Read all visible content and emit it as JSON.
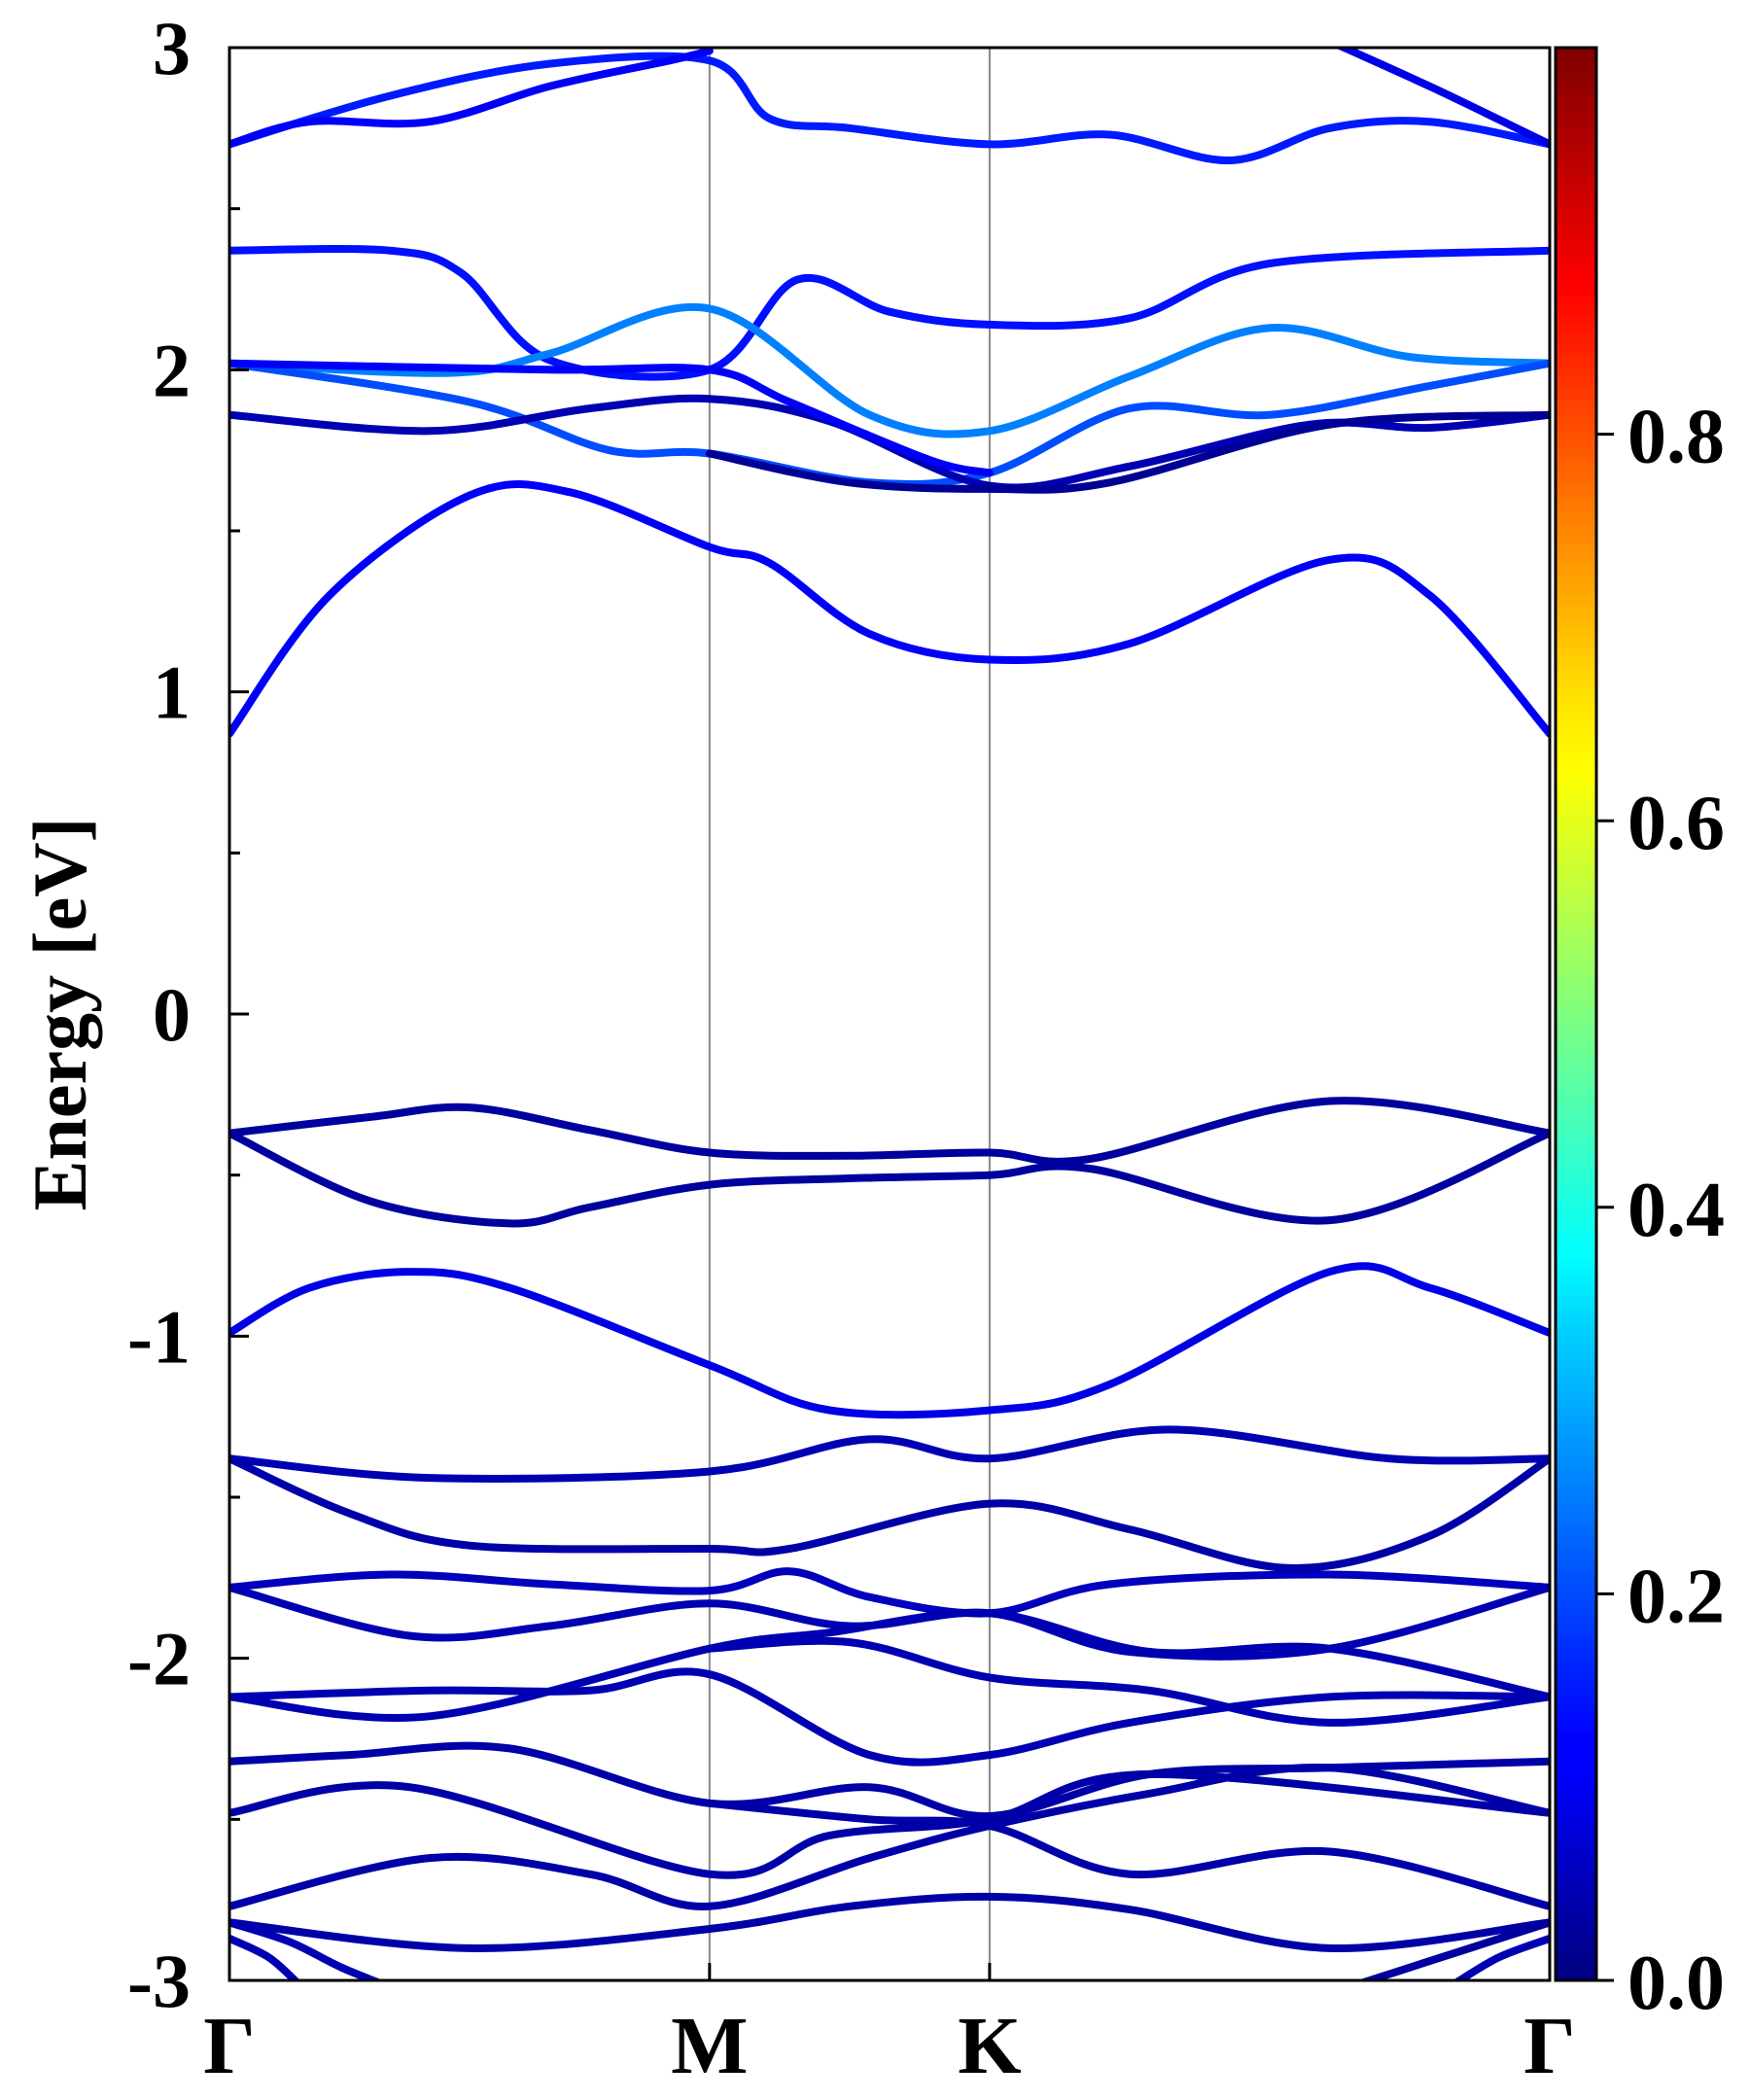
{
  "chart_data": {
    "type": "line",
    "title": "",
    "xlabel": "",
    "ylabel": "Energy [eV]",
    "ylim": [
      -3,
      3
    ],
    "xlim": [
      0,
      3.3
    ],
    "grid": false,
    "legend": "none",
    "high_symmetry_points": [
      {
        "label": "Γ",
        "x": 0
      },
      {
        "label": "M",
        "x": 1.2
      },
      {
        "label": "K",
        "x": 1.9
      },
      {
        "label": "Γ",
        "x": 3.3
      }
    ],
    "y_ticks": [
      {
        "value": 3,
        "label": "3"
      },
      {
        "value": 2,
        "label": "2"
      },
      {
        "value": 1,
        "label": "1"
      },
      {
        "value": 0,
        "label": "0"
      },
      {
        "value": -1,
        "label": "-1"
      },
      {
        "value": -2,
        "label": "-2"
      },
      {
        "value": -3,
        "label": "-3"
      }
    ],
    "colorbar": {
      "colormap": "jet",
      "range": [
        0,
        1
      ],
      "ticks": [
        {
          "value": 0.0,
          "label": "0.0"
        },
        {
          "value": 0.2,
          "label": "0.2"
        },
        {
          "value": 0.4,
          "label": "0.4"
        },
        {
          "value": 0.6,
          "label": "0.6"
        },
        {
          "value": 0.8,
          "label": "0.8"
        }
      ]
    },
    "bands": [
      {
        "weight": 0.15,
        "x": [
          0,
          0.4,
          0.8,
          1.2,
          1.35,
          1.55,
          1.9,
          2.2,
          2.5,
          2.75,
          3.0,
          3.3
        ],
        "y": [
          2.7,
          2.85,
          2.95,
          2.96,
          2.78,
          2.75,
          2.7,
          2.73,
          2.65,
          2.75,
          2.77,
          2.7
        ]
      },
      {
        "weight": 0.12,
        "x": [
          0,
          0.2,
          0.5,
          0.8,
          1.1,
          1.2
        ],
        "y": [
          2.7,
          2.77,
          2.77,
          2.88,
          2.96,
          2.99
        ]
      },
      {
        "weight": 0.1,
        "x": [
          2.75,
          3.0,
          3.3
        ],
        "y": [
          3.02,
          2.88,
          2.7
        ]
      },
      {
        "weight": 0.14,
        "x": [
          0,
          0.4,
          0.58,
          0.8,
          1.2,
          1.42,
          1.65,
          1.9,
          2.25,
          2.6,
          3.3
        ],
        "y": [
          2.37,
          2.37,
          2.3,
          2.03,
          2.0,
          2.28,
          2.18,
          2.14,
          2.16,
          2.33,
          2.37
        ]
      },
      {
        "weight": 0.25,
        "x": [
          0,
          0.55,
          0.8,
          1.2,
          1.6,
          1.9,
          2.25,
          2.6,
          2.95,
          3.3
        ],
        "y": [
          2.02,
          1.99,
          2.05,
          2.19,
          1.86,
          1.81,
          1.98,
          2.13,
          2.04,
          2.02
        ]
      },
      {
        "weight": 0.2,
        "x": [
          0,
          0.6,
          0.95,
          1.2,
          1.6,
          1.9,
          2.25,
          2.6,
          3.0,
          3.3
        ],
        "y": [
          2.02,
          1.9,
          1.75,
          1.74,
          1.65,
          1.68,
          1.88,
          1.86,
          1.95,
          2.02
        ]
      },
      {
        "weight": 0.05,
        "x": [
          0,
          0.5,
          0.9,
          1.2,
          1.5,
          1.9,
          2.25,
          2.7,
          3.0,
          3.3
        ],
        "y": [
          1.86,
          1.81,
          1.88,
          1.91,
          1.84,
          1.64,
          1.7,
          1.83,
          1.82,
          1.86
        ]
      },
      {
        "weight": 0.12,
        "x": [
          0,
          0.8,
          1.2,
          1.4,
          1.75,
          1.9
        ],
        "y": [
          2.02,
          2.0,
          2.0,
          1.9,
          1.72,
          1.68
        ]
      },
      {
        "weight": 0.02,
        "x": [
          1.2,
          1.55,
          1.9,
          2.2,
          2.75,
          3.3
        ],
        "y": [
          1.74,
          1.65,
          1.63,
          1.65,
          1.83,
          1.86
        ]
      },
      {
        "weight": 0.12,
        "x": [
          0,
          0.25,
          0.6,
          0.85,
          1.2,
          1.35,
          1.6,
          1.9,
          2.25,
          2.75,
          3.0,
          3.3
        ],
        "y": [
          0.87,
          1.3,
          1.61,
          1.62,
          1.45,
          1.4,
          1.18,
          1.1,
          1.15,
          1.41,
          1.3,
          0.87
        ]
      },
      {
        "weight": 0.03,
        "x": [
          0,
          0.35,
          0.6,
          0.9,
          1.2,
          1.55,
          1.9,
          2.15,
          2.75,
          3.3
        ],
        "y": [
          -0.37,
          -0.32,
          -0.29,
          -0.36,
          -0.43,
          -0.44,
          -0.43,
          -0.45,
          -0.27,
          -0.37
        ]
      },
      {
        "weight": 0.03,
        "x": [
          0,
          0.35,
          0.7,
          0.9,
          1.2,
          1.55,
          1.9,
          2.15,
          2.75,
          3.3
        ],
        "y": [
          -0.37,
          -0.58,
          -0.65,
          -0.6,
          -0.53,
          -0.51,
          -0.5,
          -0.48,
          -0.64,
          -0.37
        ]
      },
      {
        "weight": 0.1,
        "x": [
          0,
          0.2,
          0.45,
          0.7,
          1.2,
          1.5,
          1.9,
          2.2,
          2.75,
          3.0,
          3.3
        ],
        "y": [
          -0.99,
          -0.85,
          -0.8,
          -0.85,
          -1.09,
          -1.23,
          -1.23,
          -1.15,
          -0.8,
          -0.85,
          -0.99
        ]
      },
      {
        "weight": 0.05,
        "x": [
          0,
          0.5,
          1.2,
          1.6,
          1.9,
          2.35,
          2.9,
          3.3
        ],
        "y": [
          -1.38,
          -1.44,
          -1.42,
          -1.32,
          -1.38,
          -1.29,
          -1.38,
          -1.38
        ]
      },
      {
        "weight": 0.04,
        "x": [
          0,
          0.3,
          0.6,
          1.2,
          1.4,
          1.9,
          2.25,
          2.65,
          3.0,
          3.3
        ],
        "y": [
          -1.38,
          -1.55,
          -1.65,
          -1.66,
          -1.66,
          -1.52,
          -1.6,
          -1.72,
          -1.62,
          -1.38
        ]
      },
      {
        "weight": 0.06,
        "x": [
          0,
          0.4,
          0.8,
          1.2,
          1.4,
          1.6,
          1.9,
          2.2,
          2.75,
          3.3
        ],
        "y": [
          -1.78,
          -1.74,
          -1.77,
          -1.79,
          -1.73,
          -1.81,
          -1.86,
          -1.77,
          -1.74,
          -1.78
        ]
      },
      {
        "weight": 0.05,
        "x": [
          0,
          0.45,
          0.8,
          1.2,
          1.55,
          1.9,
          2.25,
          2.75,
          3.3
        ],
        "y": [
          -1.78,
          -1.93,
          -1.9,
          -1.83,
          -1.9,
          -1.86,
          -1.98,
          -1.97,
          -1.78
        ]
      },
      {
        "weight": 0.05,
        "x": [
          0,
          0.5,
          1.2,
          1.5,
          1.9,
          2.3,
          2.75,
          3.3
        ],
        "y": [
          -2.12,
          -2.18,
          -1.97,
          -1.92,
          -1.86,
          -1.98,
          -1.97,
          -2.12
        ]
      },
      {
        "weight": 0.05,
        "x": [
          0,
          0.5,
          0.9,
          1.2,
          1.6,
          1.9,
          2.25,
          2.75,
          3.3
        ],
        "y": [
          -2.12,
          -2.1,
          -2.1,
          -2.05,
          -2.3,
          -2.3,
          -2.2,
          -2.12,
          -2.12
        ]
      },
      {
        "weight": 0.05,
        "x": [
          1.2,
          1.55,
          1.9,
          2.3,
          2.75,
          3.3
        ],
        "y": [
          -1.97,
          -1.95,
          -2.06,
          -2.1,
          -2.2,
          -2.12
        ]
      },
      {
        "weight": 0.04,
        "x": [
          0,
          0.3,
          0.7,
          1.2,
          1.6,
          1.9,
          2.3,
          2.75,
          3.3
        ],
        "y": [
          -2.32,
          -2.3,
          -2.28,
          -2.45,
          -2.4,
          -2.49,
          -2.36,
          -2.34,
          -2.32
        ]
      },
      {
        "weight": 0.04,
        "x": [
          0,
          0.45,
          1.2,
          1.5,
          1.9,
          2.3,
          3.3
        ],
        "y": [
          -2.48,
          -2.4,
          -2.67,
          -2.55,
          -2.5,
          -2.36,
          -2.48
        ]
      },
      {
        "weight": 0.04,
        "x": [
          0,
          0.5,
          0.9,
          1.2,
          1.6,
          1.9,
          2.3,
          2.75,
          3.3
        ],
        "y": [
          -2.77,
          -2.62,
          -2.67,
          -2.77,
          -2.62,
          -2.52,
          -2.42,
          -2.34,
          -2.48
        ]
      },
      {
        "weight": 0.04,
        "x": [
          1.2,
          1.6,
          1.9,
          2.25,
          2.75,
          3.3
        ],
        "y": [
          -2.45,
          -2.5,
          -2.52,
          -2.67,
          -2.6,
          -2.77
        ]
      },
      {
        "weight": 0.04,
        "x": [
          0,
          0.6,
          1.2,
          1.55,
          1.9,
          2.25,
          2.75,
          3.3
        ],
        "y": [
          -2.82,
          -2.9,
          -2.84,
          -2.77,
          -2.74,
          -2.78,
          -2.9,
          -2.82
        ]
      },
      {
        "weight": 0.05,
        "x": [
          0,
          0.1,
          0.18
        ],
        "y": [
          -2.87,
          -2.93,
          -3.02
        ]
      },
      {
        "weight": 0.05,
        "x": [
          0,
          0.15,
          0.28,
          0.4
        ],
        "y": [
          -2.82,
          -2.88,
          -2.96,
          -3.02
        ]
      },
      {
        "weight": 0.03,
        "x": [
          2.8,
          3.0,
          3.15,
          3.3
        ],
        "y": [
          -3.02,
          -2.94,
          -2.88,
          -2.82
        ]
      },
      {
        "weight": 0.05,
        "x": [
          3.05,
          3.17,
          3.3
        ],
        "y": [
          -3.02,
          -2.93,
          -2.87
        ]
      }
    ]
  }
}
